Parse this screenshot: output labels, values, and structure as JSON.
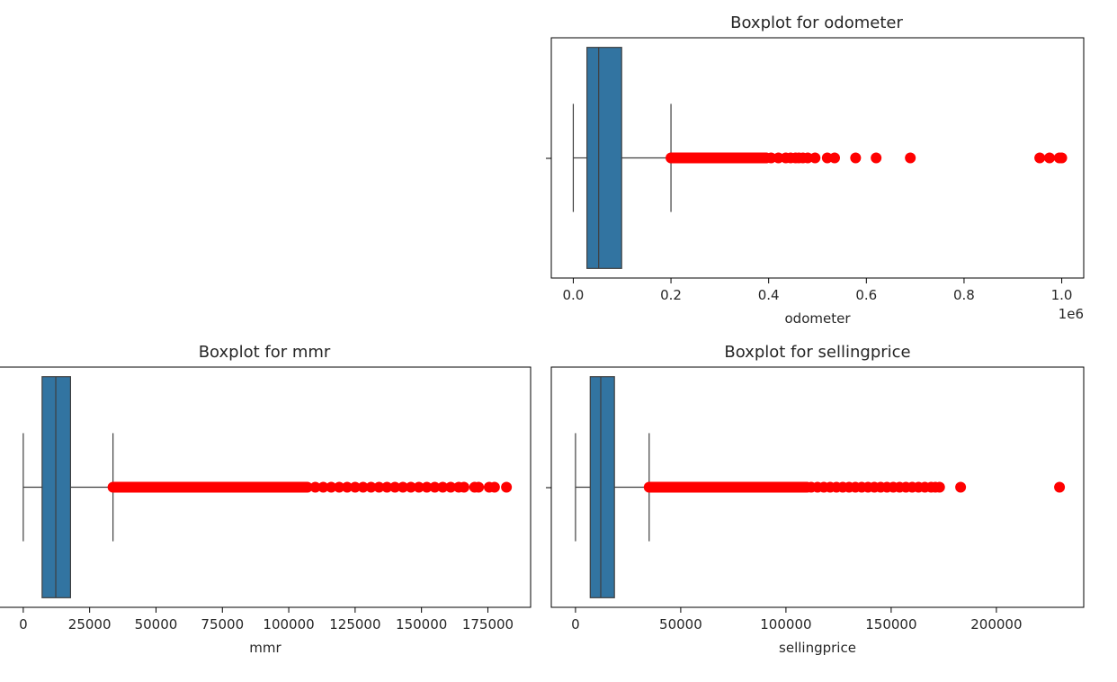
{
  "chart_data": [
    {
      "type": "boxplot",
      "title": "Boxplot for odometer",
      "xlabel": "odometer",
      "offset_text": "1e6",
      "xlim": [
        -0.045,
        1.045
      ],
      "xticks": [
        0.0,
        0.2,
        0.4,
        0.6,
        0.8,
        1.0
      ],
      "xtick_labels": [
        "0.0",
        "0.2",
        "0.4",
        "0.6",
        "0.8",
        "1.0"
      ],
      "box": {
        "whisker_low": 0.0,
        "q1": 0.028,
        "median": 0.052,
        "q3": 0.099,
        "whisker_high": 0.2
      },
      "outliers": {
        "dense_from": 0.2,
        "dense_to": 0.395,
        "points": [
          0.405,
          0.42,
          0.435,
          0.445,
          0.455,
          0.462,
          0.47,
          0.48,
          0.495,
          0.52,
          0.535,
          0.578,
          0.62,
          0.69,
          0.955,
          0.975,
          0.995,
          1.0
        ]
      },
      "box_color": "#3274a1",
      "outlier_color": "#ff0000"
    },
    {
      "type": "boxplot",
      "title": "Boxplot for mmr",
      "xlabel": "mmr",
      "offset_text": "",
      "xlim": [
        -9100,
        191100
      ],
      "xticks": [
        0,
        25000,
        50000,
        75000,
        100000,
        125000,
        150000,
        175000
      ],
      "xtick_labels": [
        "0",
        "25000",
        "50000",
        "75000",
        "100000",
        "125000",
        "150000",
        "175000"
      ],
      "box": {
        "whisker_low": 0,
        "q1": 7100,
        "median": 12250,
        "q3": 17800,
        "whisker_high": 33800
      },
      "outliers": {
        "dense_from": 33800,
        "dense_to": 107000,
        "points": [
          110000,
          113000,
          116000,
          119000,
          122000,
          125000,
          128000,
          131000,
          134000,
          137000,
          140000,
          143000,
          146000,
          149000,
          152000,
          155000,
          158000,
          161000,
          164000,
          166000,
          170000,
          171500,
          175500,
          177500,
          182000
        ]
      },
      "box_color": "#3274a1",
      "outlier_color": "#ff0000"
    },
    {
      "type": "boxplot",
      "title": "Boxplot for sellingprice",
      "xlabel": "sellingprice",
      "offset_text": "",
      "xlim": [
        -11500,
        241500
      ],
      "xticks": [
        0,
        50000,
        100000,
        150000,
        200000
      ],
      "xtick_labels": [
        "0",
        "50000",
        "100000",
        "150000",
        "200000"
      ],
      "box": {
        "whisker_low": 0,
        "q1": 7000,
        "median": 12000,
        "q3": 18500,
        "whisker_high": 35000
      },
      "outliers": {
        "dense_from": 35000,
        "dense_to": 110000,
        "points": [
          112000,
          115000,
          118000,
          121000,
          124000,
          127000,
          130000,
          133000,
          136000,
          139000,
          142000,
          145000,
          148000,
          151000,
          154000,
          157000,
          160000,
          163000,
          166000,
          169000,
          171000,
          173000,
          183000,
          230000
        ]
      },
      "box_color": "#3274a1",
      "outlier_color": "#ff0000"
    }
  ]
}
